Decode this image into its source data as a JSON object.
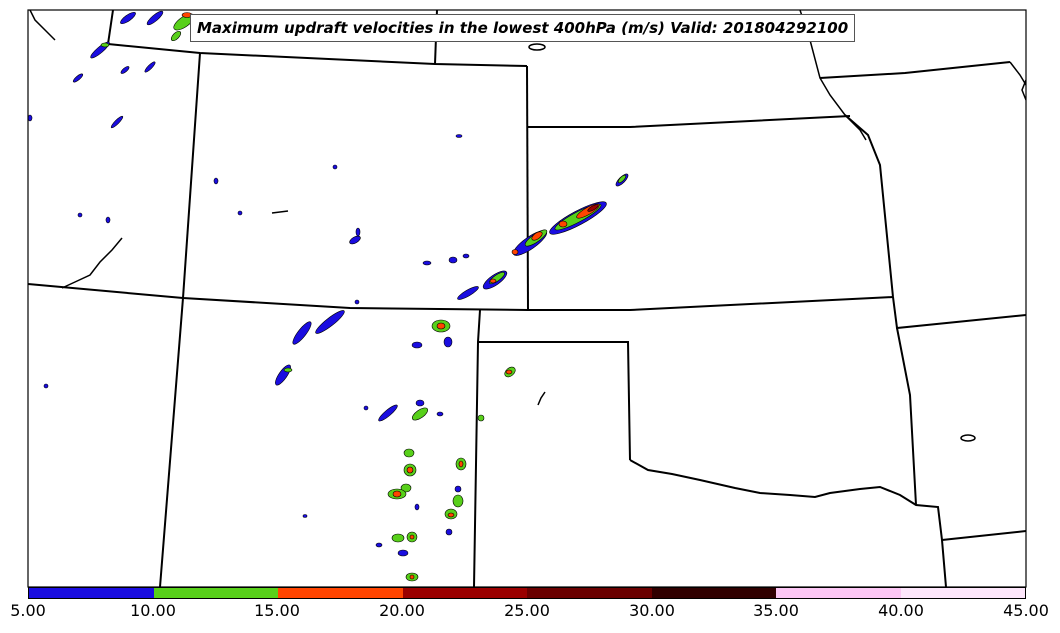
{
  "title": "Maximum updraft velocities in the lowest 400hPa (m/s) Valid: 201804292100",
  "colorbar": {
    "colors": [
      "#1a0de0",
      "#58d01a",
      "#ff4500",
      "#9b0000",
      "#6a0000",
      "#300000",
      "#fcc6f4",
      "#fde6fb"
    ],
    "tick_labels": [
      "5.00",
      "10.00",
      "15.00",
      "20.00",
      "25.00",
      "30.00",
      "35.00",
      "40.00",
      "45.00"
    ]
  },
  "map": {
    "border_color": "#000000",
    "background": "#ffffff"
  }
}
